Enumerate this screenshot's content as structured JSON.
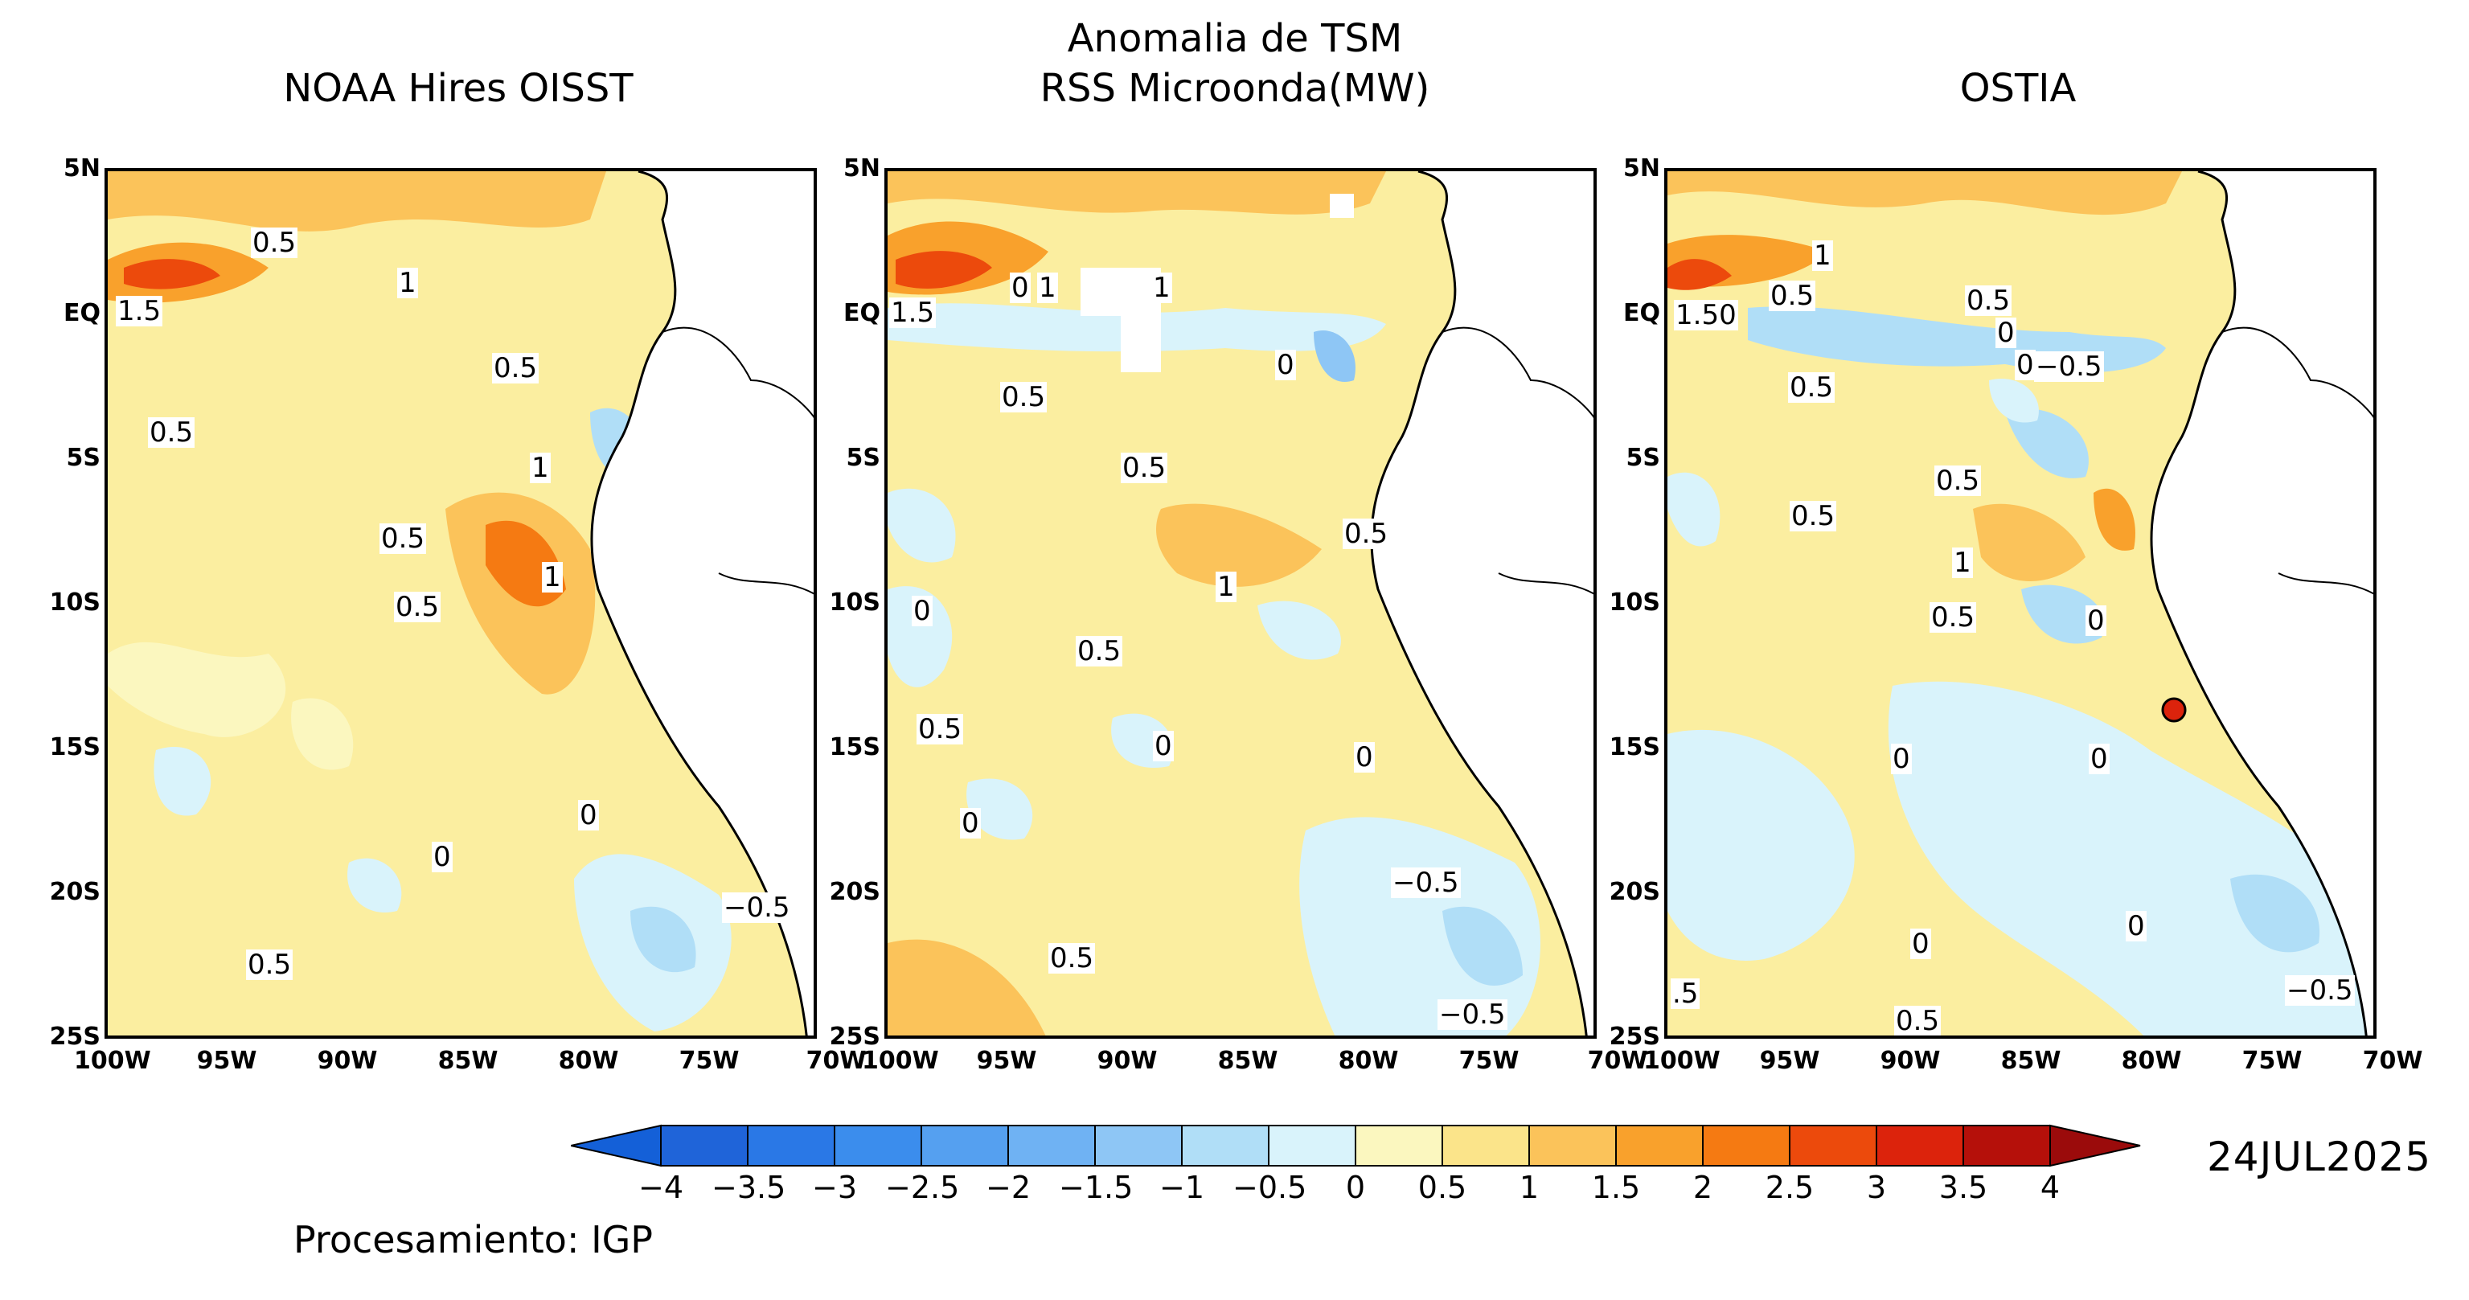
{
  "header": {
    "main_title": "Anomalia de TSM",
    "panel_titles": [
      "NOAA Hires OISST",
      "RSS Microonda(MW)",
      "OSTIA"
    ]
  },
  "axes": {
    "lat_labels": [
      "5N",
      "EQ",
      "5S",
      "10S",
      "15S",
      "20S",
      "25S"
    ],
    "lon_labels": [
      "100W",
      "95W",
      "90W",
      "85W",
      "80W",
      "75W",
      "70W"
    ]
  },
  "contour_labels": {
    "panel1": [
      "0.5",
      "1",
      "1.5",
      "0.5",
      "0.5",
      "1",
      "0.5",
      "1",
      "0.5",
      "0",
      "0",
      "−0.5",
      "0.5"
    ],
    "panel2": [
      "1.5",
      "0",
      "1",
      "1",
      "0.5",
      "0",
      "0.5",
      "0.5",
      "1",
      "0",
      "0.5",
      "0.5",
      "0",
      "0",
      "0",
      "−0.5",
      "0.5",
      "−0.5"
    ],
    "panel3": [
      "1.50",
      "0.5",
      "1",
      "0.5",
      "0",
      "0",
      "−0.5",
      "0.5",
      "0.5",
      "0.5",
      "1",
      "0.5",
      "0",
      "0",
      "0",
      "0",
      "0",
      "−0.5",
      ".5",
      "0.5"
    ]
  },
  "colorbar": {
    "levels": [
      "−4",
      "−3.5",
      "−3",
      "−2.5",
      "−2",
      "−1.5",
      "−1",
      "−0.5",
      "0",
      "0.5",
      "1",
      "1.5",
      "2",
      "2.5",
      "3",
      "3.5",
      "4"
    ],
    "colors": [
      "#1f64d9",
      "#2a78e6",
      "#3b8ded",
      "#55a0f0",
      "#6fb2f3",
      "#8ec6f5",
      "#b0def7",
      "#d9f3fb",
      "#fbf7bf",
      "#fbe48a",
      "#fbc35a",
      "#f9a12c",
      "#f57a12",
      "#ec4a0c",
      "#dc230c",
      "#b5100a"
    ],
    "under_color": "#1460d8",
    "over_color": "#9b0b0b"
  },
  "footer": {
    "date": "24JUL2025",
    "credit": "Procesamiento: IGP"
  }
}
